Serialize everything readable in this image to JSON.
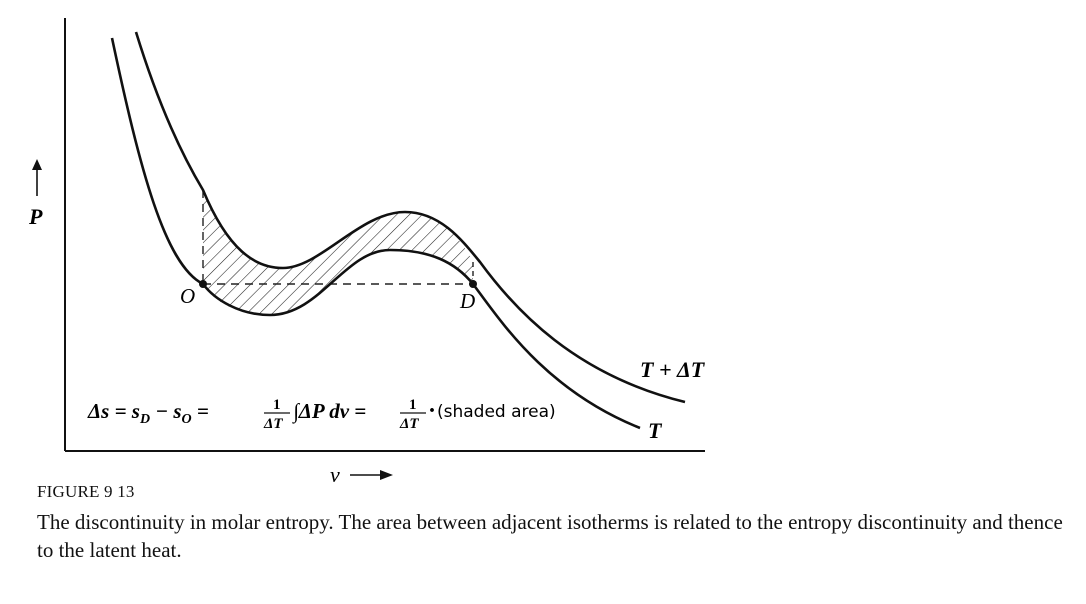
{
  "diagram": {
    "axis_y_label": "P",
    "axis_x_label": "v",
    "point_o_label": "O",
    "point_d_label": "D",
    "isotherm_lower_label": "T",
    "isotherm_upper_label": "T + ΔT",
    "equation": {
      "lhs": "Δs = s",
      "sub_d": "D",
      "minus": " − s",
      "sub_o": "O",
      "eq1": " = ",
      "frac_num": "1",
      "frac_den": "ΔT",
      "integral": "∫ΔP dv = ",
      "frac2_num": "1",
      "frac2_den": "ΔT",
      "dot": "·",
      "shaded": "(shaded area)"
    }
  },
  "caption": {
    "label": "FIGURE 9 13",
    "text": "The discontinuity in molar entropy. The area between adjacent isotherms is related to the entropy discontinuity and thence to the latent heat."
  }
}
